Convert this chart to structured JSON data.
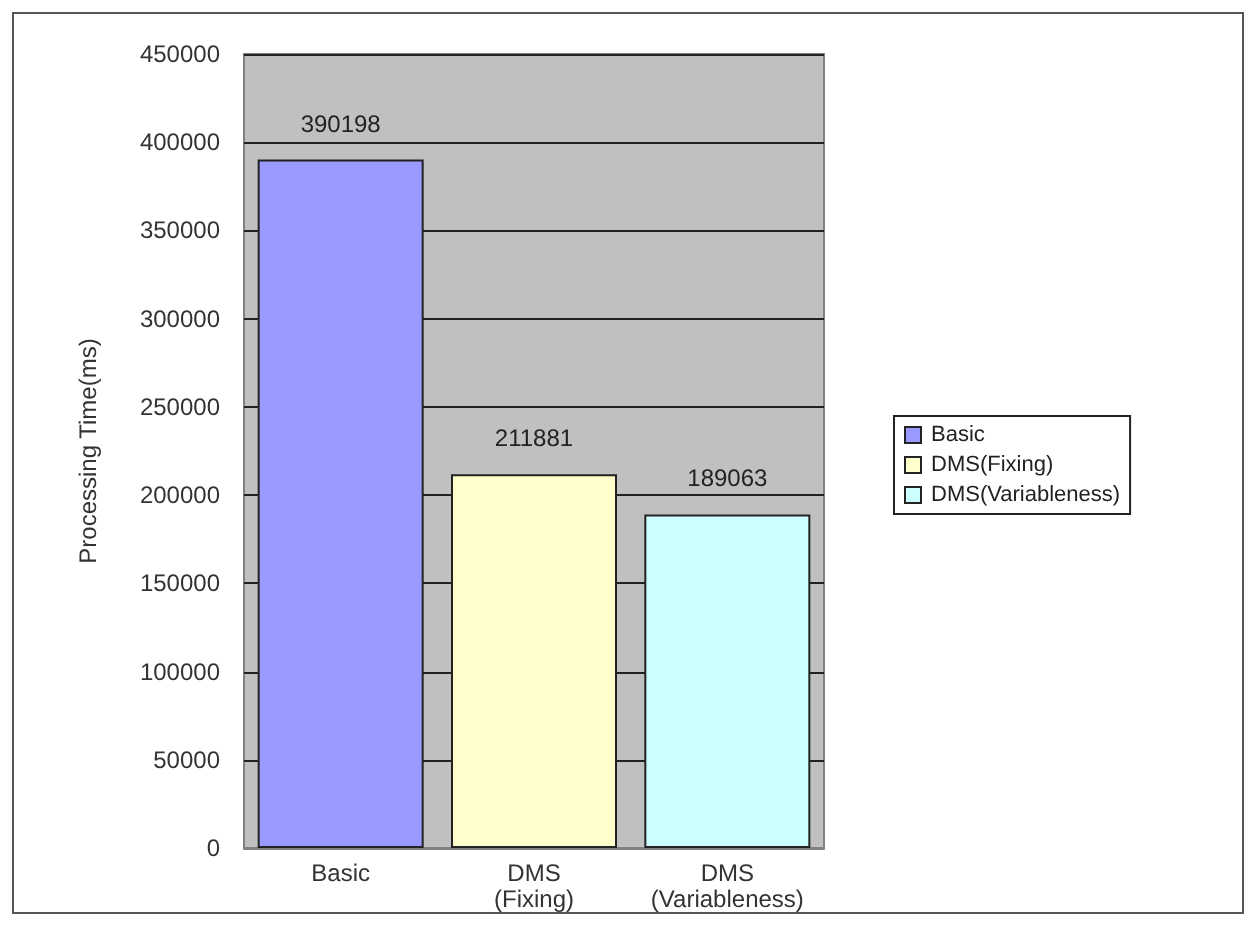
{
  "chart_data": {
    "type": "bar",
    "ylabel": "Processing Time(ms)",
    "categories": [
      "Basic",
      "DMS (Fixing)",
      "DMS (Variableness)"
    ],
    "series": [
      {
        "name": "Basic",
        "color": "#9999ff",
        "values": [
          390198,
          null,
          null
        ]
      },
      {
        "name": "DMS(Fixing)",
        "color": "#ffffcc",
        "values": [
          null,
          211881,
          null
        ]
      },
      {
        "name": "DMS(Variableness)",
        "color": "#ccffff",
        "values": [
          null,
          null,
          189063
        ]
      }
    ],
    "ylim": [
      0,
      450000
    ],
    "yticks": [
      0,
      50000,
      100000,
      150000,
      200000,
      250000,
      300000,
      350000,
      400000,
      450000
    ],
    "grid": "y",
    "legend": "right",
    "data_labels": true
  }
}
